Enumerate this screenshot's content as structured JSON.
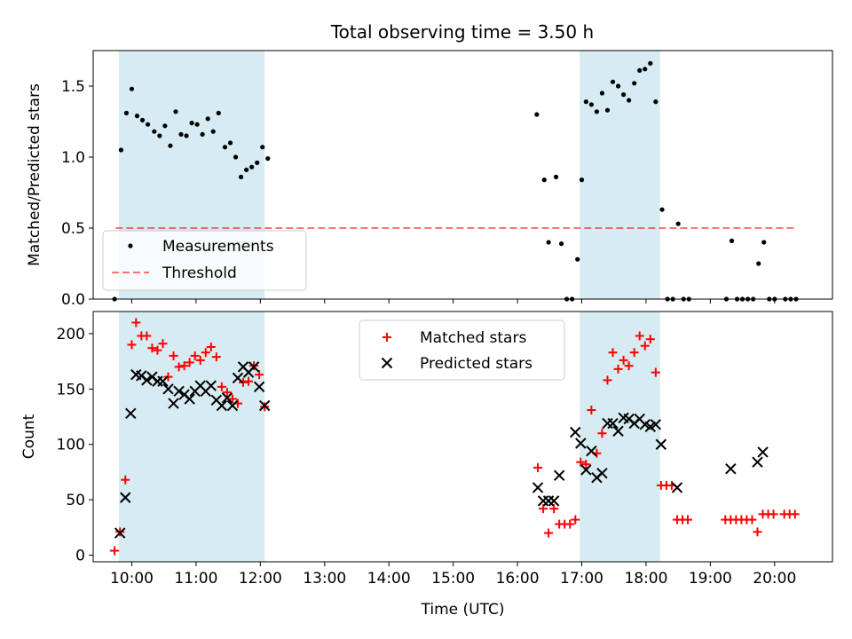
{
  "figure": {
    "title": "Total observing time = 3.50 h"
  },
  "colors": {
    "shade": "#add8e6",
    "measurement": "#000000",
    "threshold": "#ff0000",
    "matched": "#ff0000",
    "predicted": "#000000"
  },
  "chart_data": [
    {
      "type": "scatter",
      "title": "Total observing time = 3.50 h",
      "ylabel": "Matched/Predicted stars",
      "xlabel": "",
      "xlim": [
        "09:24",
        "20:54"
      ],
      "ylim": [
        0,
        1.75
      ],
      "yticks": [
        "0.0",
        "0.5",
        "1.0",
        "1.5"
      ],
      "legend": {
        "position": "lower-left",
        "entries": [
          "Measurements",
          "Threshold"
        ]
      },
      "shaded_intervals": [
        [
          "09:48",
          "12:04"
        ],
        [
          "16:58",
          "18:13"
        ]
      ],
      "threshold": {
        "name": "Threshold",
        "y": 0.5,
        "x_range": [
          "09:45",
          "20:20"
        ],
        "style": "dashed"
      },
      "series": [
        {
          "name": "Measurements",
          "points": [
            [
              "09:44",
              0.0
            ],
            [
              "09:50",
              1.05
            ],
            [
              "09:55",
              1.31
            ],
            [
              "10:00",
              1.48
            ],
            [
              "10:05",
              1.29
            ],
            [
              "10:10",
              1.26
            ],
            [
              "10:15",
              1.23
            ],
            [
              "10:21",
              1.18
            ],
            [
              "10:26",
              1.15
            ],
            [
              "10:31",
              1.22
            ],
            [
              "10:36",
              1.08
            ],
            [
              "10:41",
              1.32
            ],
            [
              "10:46",
              1.16
            ],
            [
              "10:51",
              1.15
            ],
            [
              "10:56",
              1.24
            ],
            [
              "11:01",
              1.23
            ],
            [
              "11:06",
              1.16
            ],
            [
              "11:11",
              1.27
            ],
            [
              "11:16",
              1.18
            ],
            [
              "11:21",
              1.31
            ],
            [
              "11:27",
              1.07
            ],
            [
              "11:32",
              1.1
            ],
            [
              "11:37",
              1.0
            ],
            [
              "11:42",
              0.86
            ],
            [
              "11:47",
              0.91
            ],
            [
              "11:52",
              0.93
            ],
            [
              "11:57",
              0.96
            ],
            [
              "12:02",
              1.07
            ],
            [
              "12:07",
              0.99
            ],
            [
              "16:18",
              1.3
            ],
            [
              "16:25",
              0.84
            ],
            [
              "16:29",
              0.4
            ],
            [
              "16:36",
              0.86
            ],
            [
              "16:41",
              0.39
            ],
            [
              "16:46",
              0.0
            ],
            [
              "16:51",
              0.0
            ],
            [
              "16:56",
              0.28
            ],
            [
              "17:00",
              0.84
            ],
            [
              "17:04",
              1.39
            ],
            [
              "17:09",
              1.37
            ],
            [
              "17:14",
              1.32
            ],
            [
              "17:19",
              1.45
            ],
            [
              "17:24",
              1.33
            ],
            [
              "17:29",
              1.53
            ],
            [
              "17:34",
              1.5
            ],
            [
              "17:39",
              1.44
            ],
            [
              "17:44",
              1.4
            ],
            [
              "17:49",
              1.52
            ],
            [
              "17:54",
              1.61
            ],
            [
              "17:59",
              1.62
            ],
            [
              "18:04",
              1.66
            ],
            [
              "18:09",
              1.39
            ],
            [
              "18:15",
              0.63
            ],
            [
              "18:20",
              0.0
            ],
            [
              "18:25",
              0.0
            ],
            [
              "18:30",
              0.53
            ],
            [
              "18:35",
              0.0
            ],
            [
              "18:40",
              0.0
            ],
            [
              "19:15",
              0.0
            ],
            [
              "19:20",
              0.41
            ],
            [
              "19:25",
              0.0
            ],
            [
              "19:30",
              0.0
            ],
            [
              "19:35",
              0.0
            ],
            [
              "19:40",
              0.0
            ],
            [
              "19:45",
              0.25
            ],
            [
              "19:50",
              0.4
            ],
            [
              "19:55",
              0.0
            ],
            [
              "20:00",
              0.0
            ],
            [
              "20:10",
              0.0
            ],
            [
              "20:15",
              0.0
            ],
            [
              "20:20",
              0.0
            ]
          ]
        }
      ]
    },
    {
      "type": "scatter",
      "title": "",
      "xlabel": "Time (UTC)",
      "ylabel": "Count",
      "xlim": [
        "09:24",
        "20:54"
      ],
      "ylim": [
        -6,
        220
      ],
      "yticks": [
        "0",
        "50",
        "100",
        "150",
        "200"
      ],
      "xticks": [
        "10:00",
        "11:00",
        "12:00",
        "13:00",
        "14:00",
        "15:00",
        "16:00",
        "17:00",
        "18:00",
        "19:00",
        "20:00"
      ],
      "legend": {
        "position": "upper-center",
        "entries": [
          "Matched stars",
          "Predicted stars"
        ]
      },
      "shaded_intervals": [
        [
          "09:48",
          "12:04"
        ],
        [
          "16:58",
          "18:13"
        ]
      ],
      "series": [
        {
          "name": "Matched stars",
          "marker": "plus",
          "points": [
            [
              "09:44",
              4
            ],
            [
              "09:49",
              21
            ],
            [
              "09:54",
              68
            ],
            [
              "10:00",
              190
            ],
            [
              "10:04",
              210
            ],
            [
              "10:09",
              198
            ],
            [
              "10:14",
              198
            ],
            [
              "10:19",
              187
            ],
            [
              "10:24",
              185
            ],
            [
              "10:29",
              191
            ],
            [
              "10:34",
              161
            ],
            [
              "10:39",
              180
            ],
            [
              "10:44",
              170
            ],
            [
              "10:49",
              171
            ],
            [
              "10:54",
              174
            ],
            [
              "10:59",
              180
            ],
            [
              "11:04",
              176
            ],
            [
              "11:09",
              183
            ],
            [
              "11:14",
              188
            ],
            [
              "11:19",
              179
            ],
            [
              "11:24",
              152
            ],
            [
              "11:29",
              147
            ],
            [
              "11:34",
              141
            ],
            [
              "11:39",
              137
            ],
            [
              "11:44",
              156
            ],
            [
              "11:49",
              157
            ],
            [
              "11:54",
              171
            ],
            [
              "11:59",
              163
            ],
            [
              "12:04",
              134
            ],
            [
              "16:19",
              79
            ],
            [
              "16:24",
              42
            ],
            [
              "16:29",
              20
            ],
            [
              "16:34",
              42
            ],
            [
              "16:39",
              28
            ],
            [
              "16:44",
              28
            ],
            [
              "16:49",
              28
            ],
            [
              "16:54",
              32
            ],
            [
              "16:59",
              84
            ],
            [
              "17:04",
              82
            ],
            [
              "17:09",
              131
            ],
            [
              "17:14",
              92
            ],
            [
              "17:19",
              110
            ],
            [
              "17:24",
              158
            ],
            [
              "17:29",
              183
            ],
            [
              "17:34",
              168
            ],
            [
              "17:39",
              176
            ],
            [
              "17:44",
              171
            ],
            [
              "17:49",
              183
            ],
            [
              "17:54",
              198
            ],
            [
              "17:59",
              189
            ],
            [
              "18:04",
              195
            ],
            [
              "18:09",
              165
            ],
            [
              "18:14",
              63
            ],
            [
              "18:19",
              63
            ],
            [
              "18:24",
              63
            ],
            [
              "18:29",
              32
            ],
            [
              "18:34",
              32
            ],
            [
              "18:39",
              32
            ],
            [
              "19:14",
              32
            ],
            [
              "19:19",
              32
            ],
            [
              "19:24",
              32
            ],
            [
              "19:29",
              32
            ],
            [
              "19:34",
              32
            ],
            [
              "19:39",
              32
            ],
            [
              "19:44",
              21
            ],
            [
              "19:49",
              37
            ],
            [
              "19:54",
              37
            ],
            [
              "19:59",
              37
            ],
            [
              "20:09",
              37
            ],
            [
              "20:14",
              37
            ],
            [
              "20:19",
              37
            ]
          ]
        },
        {
          "name": "Predicted stars",
          "marker": "x",
          "points": [
            [
              "09:49",
              20
            ],
            [
              "09:54",
              52
            ],
            [
              "09:59",
              128
            ],
            [
              "10:04",
              163
            ],
            [
              "10:09",
              162
            ],
            [
              "10:14",
              158
            ],
            [
              "10:19",
              161
            ],
            [
              "10:24",
              157
            ],
            [
              "10:29",
              157
            ],
            [
              "10:34",
              150
            ],
            [
              "10:39",
              137
            ],
            [
              "10:44",
              148
            ],
            [
              "10:49",
              145
            ],
            [
              "10:54",
              141
            ],
            [
              "10:59",
              148
            ],
            [
              "11:04",
              153
            ],
            [
              "11:09",
              148
            ],
            [
              "11:14",
              153
            ],
            [
              "11:19",
              140
            ],
            [
              "11:24",
              135
            ],
            [
              "11:29",
              142
            ],
            [
              "11:34",
              135
            ],
            [
              "11:39",
              160
            ],
            [
              "11:44",
              170
            ],
            [
              "11:49",
              165
            ],
            [
              "11:54",
              170
            ],
            [
              "11:59",
              152
            ],
            [
              "12:04",
              135
            ],
            [
              "16:19",
              61
            ],
            [
              "16:24",
              49
            ],
            [
              "16:29",
              49
            ],
            [
              "16:34",
              49
            ],
            [
              "16:39",
              72
            ],
            [
              "16:54",
              111
            ],
            [
              "16:59",
              101
            ],
            [
              "17:04",
              77
            ],
            [
              "17:09",
              94
            ],
            [
              "17:14",
              70
            ],
            [
              "17:19",
              74
            ],
            [
              "17:24",
              119
            ],
            [
              "17:29",
              119
            ],
            [
              "17:34",
              112
            ],
            [
              "17:39",
              124
            ],
            [
              "17:44",
              123
            ],
            [
              "17:49",
              119
            ],
            [
              "17:54",
              123
            ],
            [
              "17:59",
              118
            ],
            [
              "18:04",
              116
            ],
            [
              "18:09",
              118
            ],
            [
              "18:14",
              100
            ],
            [
              "18:29",
              61
            ],
            [
              "19:19",
              78
            ],
            [
              "19:44",
              84
            ],
            [
              "19:49",
              93
            ]
          ]
        }
      ]
    }
  ]
}
